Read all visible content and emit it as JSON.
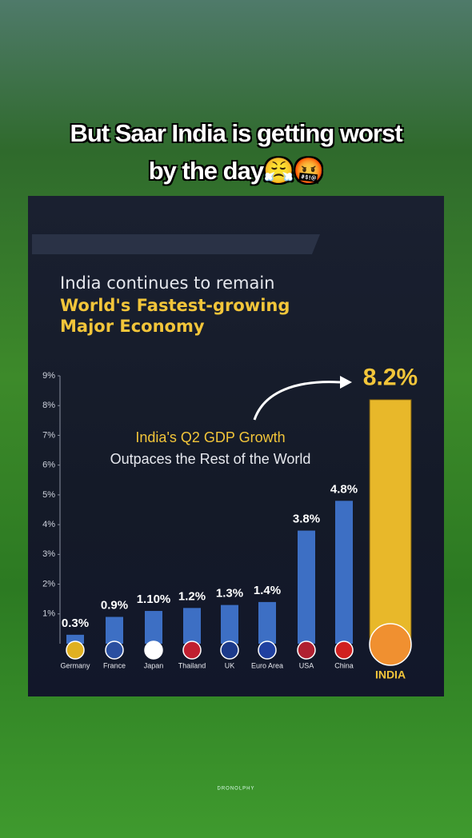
{
  "overlay_caption": [
    "But Saar India is getting worst",
    "by the day😤🤬"
  ],
  "watermark": "DRONOLPHY",
  "chart_data": {
    "type": "bar",
    "title": "India continues to remain",
    "subtitle": "World's Fastest-growing Major Economy",
    "annotations": [
      "India's Q2 GDP Growth",
      "Outpaces the Rest of the World"
    ],
    "categories": [
      "Germany",
      "France",
      "Japan",
      "Thailand",
      "UK",
      "Euro Area",
      "USA",
      "China",
      "INDIA"
    ],
    "values": [
      0.3,
      0.9,
      1.1,
      1.2,
      1.3,
      1.4,
      3.8,
      4.8,
      8.2
    ],
    "value_labels": [
      "0.3%",
      "0.9%",
      "1.10%",
      "1.2%",
      "1.3%",
      "1.4%",
      "3.8%",
      "4.8%",
      "8.2%"
    ],
    "colors": [
      "#3d6fc4",
      "#3d6fc4",
      "#3d6fc4",
      "#3d6fc4",
      "#3d6fc4",
      "#3d6fc4",
      "#3d6fc4",
      "#3d6fc4",
      "#e8b82a"
    ],
    "ylim": [
      0,
      9
    ],
    "yticks": [
      {
        "value": 1,
        "label": "1%"
      },
      {
        "value": 2,
        "label": "2%"
      },
      {
        "value": 3,
        "label": "3%"
      },
      {
        "value": 4,
        "label": "4%"
      },
      {
        "value": 5,
        "label": "5%"
      },
      {
        "value": 6,
        "label": "6%"
      },
      {
        "value": 7,
        "label": "7%"
      },
      {
        "value": 8,
        "label": "8%"
      },
      {
        "value": 9,
        "label": "9%"
      }
    ],
    "grid": false
  }
}
